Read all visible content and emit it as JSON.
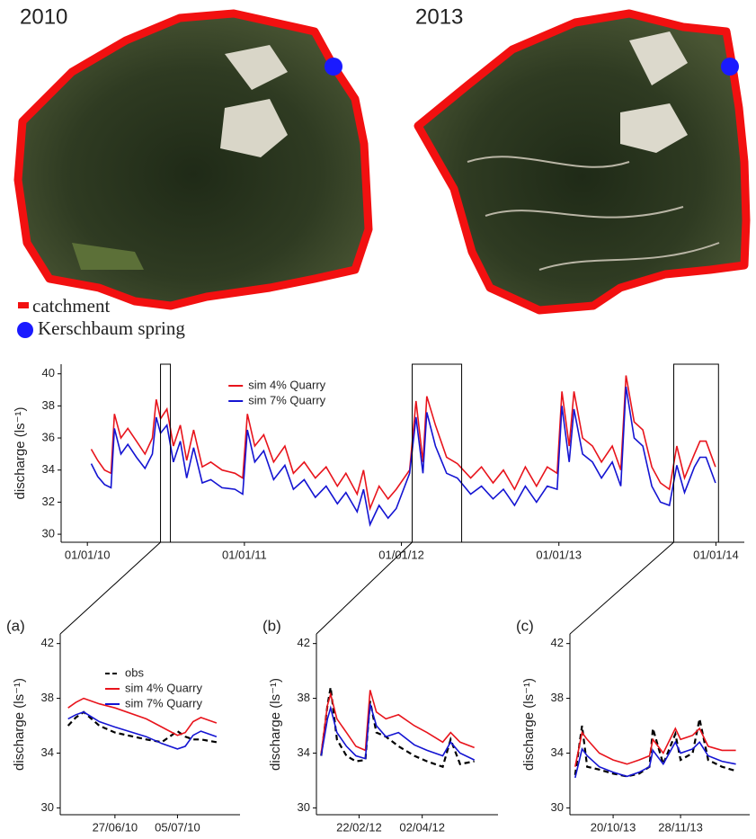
{
  "maps": {
    "titles": [
      "2010",
      "2013"
    ],
    "legend": [
      "catchment",
      "Kerschbaum spring"
    ]
  },
  "chart_data": [
    {
      "type": "line",
      "y_label": "discharge (ls⁻¹)",
      "legend": "top",
      "xlim": [
        "2009-11-01",
        "2014-03-08"
      ],
      "ylim": [
        29.5,
        40.6
      ],
      "xticks": [
        {
          "value": "2010-01-01",
          "label": "01/01/10"
        },
        {
          "value": "2011-01-01",
          "label": "01/01/11"
        },
        {
          "value": "2012-01-01",
          "label": "01/01/12"
        },
        {
          "value": "2013-01-01",
          "label": "01/01/13"
        },
        {
          "value": "2014-01-01",
          "label": "01/01/14"
        }
      ],
      "yticks": [
        30,
        32,
        34,
        36,
        38,
        40
      ],
      "x": [
        "2010-01-10",
        "2010-01-25",
        "2010-02-10",
        "2010-02-25",
        "2010-03-05",
        "2010-03-20",
        "2010-04-05",
        "2010-04-25",
        "2010-05-15",
        "2010-06-01",
        "2010-06-10",
        "2010-06-20",
        "2010-07-05",
        "2010-07-20",
        "2010-08-05",
        "2010-08-20",
        "2010-09-05",
        "2010-09-25",
        "2010-10-15",
        "2010-11-10",
        "2010-12-10",
        "2010-12-28",
        "2011-01-08",
        "2011-01-25",
        "2011-02-15",
        "2011-03-10",
        "2011-04-05",
        "2011-04-25",
        "2011-05-20",
        "2011-06-15",
        "2011-07-10",
        "2011-08-05",
        "2011-08-25",
        "2011-09-20",
        "2011-10-05",
        "2011-10-20",
        "2011-11-10",
        "2011-12-01",
        "2011-12-20",
        "2012-01-20",
        "2012-02-04",
        "2012-02-20",
        "2012-02-29",
        "2012-03-20",
        "2012-04-15",
        "2012-05-10",
        "2012-06-10",
        "2012-07-05",
        "2012-08-01",
        "2012-08-25",
        "2012-09-20",
        "2012-10-15",
        "2012-11-10",
        "2012-12-05",
        "2012-12-28",
        "2013-01-08",
        "2013-01-25",
        "2013-02-05",
        "2013-02-25",
        "2013-03-20",
        "2013-04-10",
        "2013-05-05",
        "2013-05-25",
        "2013-06-06",
        "2013-06-25",
        "2013-07-15",
        "2013-08-05",
        "2013-08-25",
        "2013-09-15",
        "2013-10-02",
        "2013-10-20",
        "2013-11-12",
        "2013-11-25",
        "2013-12-09",
        "2013-12-31"
      ],
      "series": [
        {
          "name": "sim 4% Quarry",
          "color": "#e8141c",
          "line_style": "solid",
          "values": [
            35.3,
            34.6,
            34.0,
            33.8,
            37.5,
            36.0,
            36.6,
            35.8,
            35.0,
            36.0,
            38.4,
            37.2,
            37.8,
            35.5,
            36.8,
            34.6,
            36.5,
            34.2,
            34.5,
            34.0,
            33.8,
            33.5,
            37.5,
            35.5,
            36.2,
            34.5,
            35.5,
            33.8,
            34.5,
            33.5,
            34.2,
            33.0,
            33.8,
            32.5,
            34.0,
            31.6,
            33.0,
            32.2,
            32.8,
            34.0,
            38.3,
            34.5,
            38.6,
            36.8,
            34.8,
            34.4,
            33.5,
            34.2,
            33.2,
            34.0,
            32.8,
            34.2,
            33.0,
            34.2,
            33.8,
            38.9,
            35.5,
            38.9,
            36.0,
            35.5,
            34.5,
            35.5,
            34.0,
            39.9,
            37.0,
            36.5,
            34.2,
            33.2,
            32.8,
            35.5,
            33.5,
            35.0,
            35.8,
            35.8,
            34.2
          ]
        },
        {
          "name": "sim 7% Quarry",
          "color": "#1414d2",
          "line_style": "solid",
          "values": [
            34.4,
            33.6,
            33.1,
            32.9,
            36.6,
            35.0,
            35.6,
            34.8,
            34.1,
            35.0,
            37.3,
            36.3,
            36.8,
            34.5,
            35.8,
            33.5,
            35.4,
            33.2,
            33.4,
            32.9,
            32.8,
            32.5,
            36.5,
            34.5,
            35.2,
            33.4,
            34.3,
            32.8,
            33.4,
            32.3,
            33.0,
            31.9,
            32.6,
            31.4,
            32.8,
            30.6,
            31.8,
            31.0,
            31.6,
            33.8,
            37.3,
            33.8,
            37.6,
            35.5,
            33.8,
            33.5,
            32.5,
            33.0,
            32.2,
            32.8,
            31.8,
            33.0,
            32.0,
            33.0,
            32.8,
            38.0,
            34.5,
            37.8,
            35.0,
            34.5,
            33.5,
            34.5,
            33.0,
            39.2,
            36.0,
            35.5,
            33.0,
            32.0,
            31.8,
            34.3,
            32.6,
            34.2,
            34.8,
            34.8,
            33.2
          ]
        }
      ]
    },
    {
      "type": "line",
      "label": "(a)",
      "y_label": "discharge (ls⁻¹)",
      "legend": "top-left",
      "xlim": [
        "2010-06-20",
        "2010-07-13"
      ],
      "ylim": [
        29.5,
        42.7
      ],
      "xticks": [
        {
          "value": "2010-06-27",
          "label": "27/06/10"
        },
        {
          "value": "2010-07-05",
          "label": "05/07/10"
        }
      ],
      "yticks": [
        30,
        34,
        38,
        42
      ],
      "x": [
        "2010-06-21",
        "2010-06-22",
        "2010-06-23",
        "2010-06-25",
        "2010-06-27",
        "2010-07-01",
        "2010-07-03",
        "2010-07-05",
        "2010-07-06",
        "2010-07-07",
        "2010-07-08",
        "2010-07-10"
      ],
      "series": [
        {
          "name": "obs",
          "color": "#000000",
          "line_style": "dashed",
          "values": [
            36.0,
            36.6,
            37.0,
            36.0,
            35.5,
            35.0,
            34.8,
            35.6,
            35.2,
            35.0,
            35.0,
            34.8
          ]
        },
        {
          "name": "sim 4% Quarry",
          "color": "#e8141c",
          "line_style": "solid",
          "values": [
            37.3,
            37.7,
            38.0,
            37.6,
            37.3,
            36.5,
            35.9,
            35.3,
            35.5,
            36.3,
            36.6,
            36.2
          ]
        },
        {
          "name": "sim 7% Quarry",
          "color": "#1414d2",
          "line_style": "solid",
          "values": [
            36.5,
            36.8,
            37.0,
            36.3,
            35.9,
            35.2,
            34.7,
            34.3,
            34.5,
            35.3,
            35.6,
            35.2
          ]
        }
      ]
    },
    {
      "type": "line",
      "label": "(b)",
      "y_label": "discharge (ls⁻¹)",
      "xlim": [
        "2012-01-26",
        "2012-05-20"
      ],
      "ylim": [
        29.5,
        42.7
      ],
      "xticks": [
        {
          "value": "2012-02-22",
          "label": "22/02/12"
        },
        {
          "value": "2012-04-02",
          "label": "02/04/12"
        }
      ],
      "yticks": [
        30,
        34,
        38,
        42
      ],
      "x": [
        "2012-01-29",
        "2012-02-02",
        "2012-02-04",
        "2012-02-08",
        "2012-02-14",
        "2012-02-20",
        "2012-02-26",
        "2012-02-29",
        "2012-03-04",
        "2012-03-10",
        "2012-03-18",
        "2012-03-28",
        "2012-04-05",
        "2012-04-15",
        "2012-04-20",
        "2012-04-26",
        "2012-05-05"
      ],
      "series": [
        {
          "color": "#000000",
          "line_style": "dashed",
          "values": [
            33.8,
            37.5,
            38.8,
            35.0,
            33.8,
            33.4,
            33.5,
            37.8,
            35.5,
            35.2,
            34.5,
            33.8,
            33.4,
            33.0,
            35.0,
            33.2,
            33.4
          ]
        },
        {
          "color": "#e8141c",
          "line_style": "solid",
          "values": [
            34.0,
            37.5,
            38.3,
            36.5,
            35.5,
            34.5,
            34.2,
            38.6,
            37.0,
            36.5,
            36.8,
            36.0,
            35.5,
            34.8,
            35.5,
            34.8,
            34.4
          ]
        },
        {
          "color": "#1414d2",
          "line_style": "solid",
          "values": [
            33.8,
            36.5,
            37.3,
            35.5,
            34.5,
            33.8,
            33.6,
            37.6,
            36.0,
            35.2,
            35.5,
            34.6,
            34.2,
            33.8,
            34.8,
            34.0,
            33.5
          ]
        }
      ]
    },
    {
      "type": "line",
      "label": "(c)",
      "y_label": "discharge (ls⁻¹)",
      "xlim": [
        "2013-09-25",
        "2014-01-07"
      ],
      "ylim": [
        29.5,
        42.7
      ],
      "xticks": [
        {
          "value": "2013-10-20",
          "label": "20/10/13"
        },
        {
          "value": "2013-11-28",
          "label": "28/11/13"
        }
      ],
      "yticks": [
        30,
        34,
        38,
        42
      ],
      "x": [
        "2013-09-28",
        "2013-10-02",
        "2013-10-05",
        "2013-10-12",
        "2013-10-20",
        "2013-10-28",
        "2013-11-04",
        "2013-11-10",
        "2013-11-12",
        "2013-11-18",
        "2013-11-25",
        "2013-11-28",
        "2013-12-05",
        "2013-12-09",
        "2013-12-14",
        "2013-12-22",
        "2013-12-30"
      ],
      "series": [
        {
          "color": "#000000",
          "line_style": "dashed",
          "values": [
            32.4,
            36.0,
            33.0,
            32.8,
            32.5,
            32.3,
            32.5,
            33.0,
            35.8,
            33.2,
            35.4,
            33.5,
            34.0,
            36.5,
            33.5,
            33.0,
            32.7
          ]
        },
        {
          "color": "#e8141c",
          "line_style": "solid",
          "values": [
            33.0,
            35.5,
            35.0,
            34.0,
            33.5,
            33.2,
            33.5,
            33.8,
            35.0,
            34.0,
            35.8,
            35.0,
            35.3,
            35.8,
            34.5,
            34.2,
            34.2
          ]
        },
        {
          "color": "#1414d2",
          "line_style": "solid",
          "values": [
            32.2,
            34.3,
            33.8,
            33.0,
            32.6,
            32.3,
            32.6,
            33.0,
            34.2,
            33.2,
            34.8,
            34.0,
            34.3,
            34.8,
            33.8,
            33.4,
            33.2
          ]
        }
      ]
    }
  ]
}
